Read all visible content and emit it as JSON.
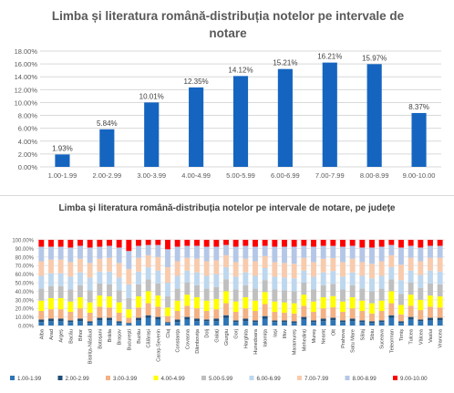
{
  "chart_data": [
    {
      "type": "bar",
      "title": "Limba și literatura română-distribuția notelor pe intervale de notare",
      "categories": [
        "1.00-1.99",
        "2.00-2.99",
        "3.00-3.99",
        "4.00-4.99",
        "5.00-5.99",
        "6.00-6.99",
        "7.00-7.99",
        "8.00-8.99",
        "9.00-10.00"
      ],
      "values": [
        1.93,
        5.84,
        10.01,
        12.35,
        14.12,
        15.21,
        16.21,
        15.97,
        8.37
      ],
      "data_labels": [
        "1.93%",
        "5.84%",
        "10.01%",
        "12.35%",
        "14.12%",
        "15.21%",
        "16.21%",
        "15.97%",
        "8.37%"
      ],
      "ylim": [
        0,
        18
      ],
      "yticks": [
        "0.00%",
        "2.00%",
        "4.00%",
        "6.00%",
        "8.00%",
        "10.00%",
        "12.00%",
        "14.00%",
        "16.00%",
        "18.00%"
      ],
      "grid": true,
      "color": "#1565C0"
    },
    {
      "type": "bar",
      "stacked": "percent",
      "title": "Limba și literatura română-distribuția notelor pe intervale de notare, pe județe",
      "categories": [
        "Alba",
        "Arad",
        "Argeș",
        "Bacău",
        "Bihor",
        "Bistrița-Năsăud",
        "Botoșani",
        "Brăila",
        "Brașov",
        "București",
        "Buzău",
        "Călărași",
        "Caraș-Severin",
        "Cluj",
        "Constanța",
        "Covasna",
        "Dâmbovița",
        "Dolj",
        "Galați",
        "Giurgiu",
        "Gorj",
        "Harghita",
        "Hunedoara",
        "Ialomița",
        "Iași",
        "Ilfov",
        "Maramureș",
        "Mehedinți",
        "Mureș",
        "Neamț",
        "Olt",
        "Prahova",
        "Satu Mare",
        "Sălaj",
        "Sibiu",
        "Suceava",
        "Teleorman",
        "Timiș",
        "Tulcea",
        "Vâlcea",
        "Vaslui",
        "Vrancea"
      ],
      "yticks": [
        "0.00%",
        "10.00%",
        "20.00%",
        "30.00%",
        "40.00%",
        "50.00%",
        "60.00%",
        "70.00%",
        "80.00%",
        "90.00%",
        "100.00%"
      ],
      "ylim": [
        0,
        100
      ],
      "grid": true,
      "legend_position": "bottom",
      "series": [
        {
          "name": "1.00-1.99",
          "color": "#2E75B6",
          "values": [
            4,
            5,
            5,
            4,
            5,
            3,
            6,
            6,
            3,
            2,
            6,
            9,
            7,
            3,
            4,
            7,
            5,
            5,
            5,
            9,
            4,
            5,
            4,
            8,
            4,
            4,
            3,
            7,
            4,
            5,
            6,
            4,
            5,
            4,
            3,
            4,
            9,
            3,
            7,
            5,
            6,
            6
          ]
        },
        {
          "name": "2.00-2.99",
          "color": "#1F4E79",
          "values": [
            3,
            3,
            3,
            2,
            3,
            2,
            3,
            3,
            2,
            1,
            3,
            3,
            3,
            1,
            3,
            3,
            3,
            2,
            3,
            3,
            2,
            3,
            2,
            3,
            2,
            2,
            2,
            3,
            2,
            3,
            3,
            2,
            3,
            2,
            2,
            2,
            3,
            2,
            3,
            2,
            3,
            3
          ]
        },
        {
          "name": "3.00-3.99",
          "color": "#F4B183",
          "values": [
            10,
            11,
            11,
            10,
            12,
            10,
            13,
            12,
            10,
            6,
            12,
            14,
            12,
            7,
            10,
            13,
            12,
            10,
            11,
            14,
            10,
            12,
            11,
            14,
            10,
            9,
            9,
            13,
            10,
            12,
            12,
            10,
            12,
            11,
            9,
            11,
            14,
            8,
            13,
            11,
            13,
            12
          ]
        },
        {
          "name": "4.00-4.99",
          "color": "#FFFF00",
          "values": [
            12,
            13,
            13,
            12,
            13,
            12,
            13,
            13,
            12,
            10,
            13,
            14,
            13,
            10,
            12,
            13,
            13,
            12,
            12,
            14,
            12,
            13,
            12,
            14,
            12,
            12,
            12,
            13,
            12,
            13,
            13,
            12,
            13,
            12,
            12,
            12,
            14,
            11,
            13,
            12,
            13,
            13
          ]
        },
        {
          "name": "5.00-5.99",
          "color": "#BFBFBF",
          "values": [
            14,
            14,
            14,
            14,
            14,
            14,
            14,
            14,
            14,
            13,
            14,
            14,
            14,
            13,
            14,
            14,
            14,
            14,
            14,
            14,
            14,
            14,
            14,
            14,
            14,
            14,
            14,
            14,
            14,
            14,
            14,
            14,
            14,
            14,
            14,
            14,
            14,
            13,
            14,
            14,
            14,
            14
          ]
        },
        {
          "name": "6.00-6.99",
          "color": "#BDD7EE",
          "values": [
            15,
            15,
            15,
            15,
            15,
            15,
            14,
            15,
            15,
            16,
            15,
            14,
            15,
            16,
            15,
            14,
            15,
            15,
            15,
            14,
            15,
            15,
            15,
            14,
            15,
            15,
            15,
            14,
            15,
            15,
            15,
            15,
            15,
            15,
            15,
            15,
            14,
            16,
            14,
            15,
            15,
            15
          ]
        },
        {
          "name": "7.00-7.99",
          "color": "#F8CBAD",
          "values": [
            17,
            16,
            16,
            17,
            16,
            17,
            15,
            16,
            17,
            18,
            16,
            14,
            16,
            18,
            17,
            15,
            16,
            17,
            16,
            14,
            17,
            16,
            17,
            14,
            17,
            17,
            17,
            15,
            17,
            16,
            15,
            17,
            16,
            16,
            17,
            17,
            14,
            18,
            15,
            16,
            15,
            16
          ]
        },
        {
          "name": "8.00-8.99",
          "color": "#B4C7E7",
          "values": [
            17,
            15,
            15,
            17,
            15,
            18,
            14,
            14,
            18,
            21,
            14,
            12,
            14,
            21,
            17,
            14,
            15,
            17,
            16,
            12,
            18,
            15,
            17,
            12,
            18,
            19,
            20,
            14,
            18,
            15,
            14,
            18,
            15,
            17,
            19,
            17,
            12,
            20,
            14,
            16,
            14,
            14
          ]
        },
        {
          "name": "9.00-10.00",
          "color": "#FF0000",
          "values": [
            8,
            8,
            8,
            9,
            7,
            9,
            8,
            7,
            9,
            13,
            7,
            6,
            6,
            11,
            8,
            7,
            7,
            8,
            8,
            6,
            8,
            7,
            8,
            7,
            8,
            8,
            8,
            7,
            8,
            7,
            7,
            8,
            7,
            9,
            9,
            8,
            6,
            9,
            7,
            9,
            7,
            7
          ]
        }
      ]
    }
  ]
}
